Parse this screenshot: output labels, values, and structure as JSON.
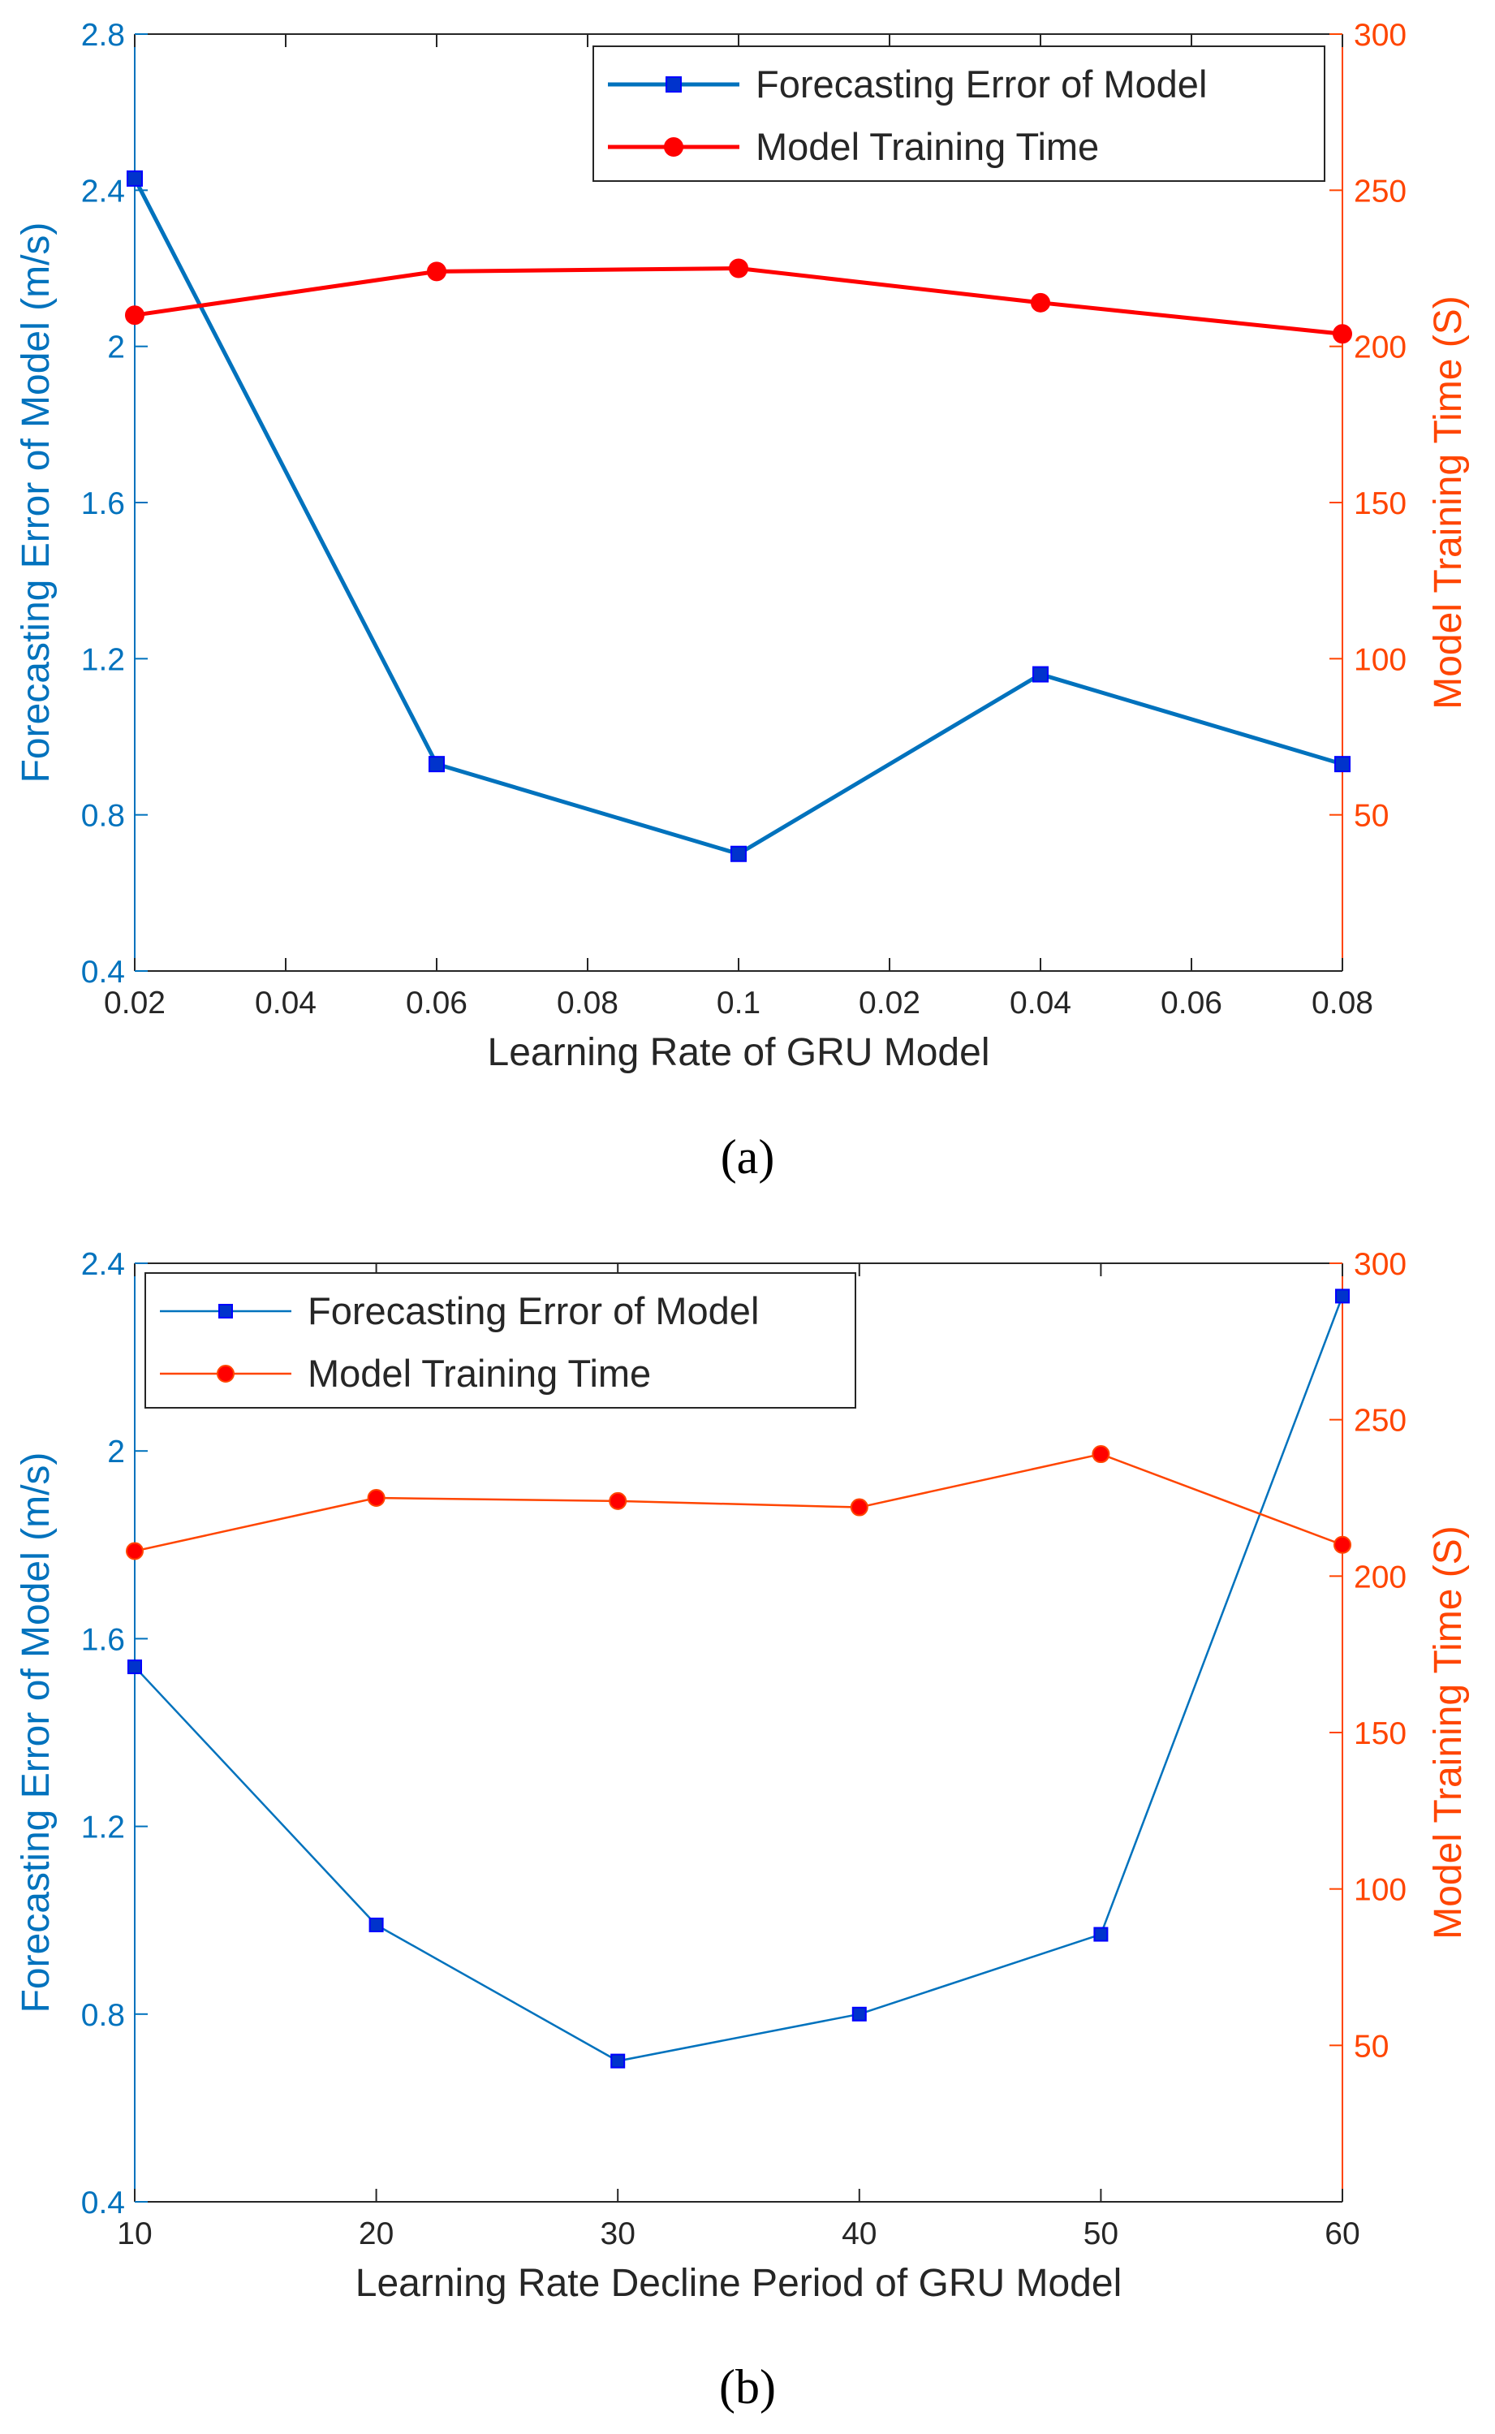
{
  "chart_data": [
    {
      "type": "line",
      "panel_label": "(a)",
      "xlabel": "Learning Rate of GRU Model",
      "x_tick_labels": [
        "0.02",
        "0.04",
        "0.06",
        "0.08",
        "0.1",
        "0.02",
        "0.04",
        "0.06",
        "0.08"
      ],
      "ylabel_left": "Forecasting Error of Model (m/s)",
      "ylabel_right": "Model Training Time (S)",
      "ylim_left": [
        0.4,
        2.8
      ],
      "yticks_left": [
        "0.4",
        "0.8",
        "1.2",
        "1.6",
        "2",
        "2.4",
        "2.8"
      ],
      "ylim_right": [
        0,
        300
      ],
      "yticks_right": [
        "50",
        "100",
        "150",
        "200",
        "250",
        "300"
      ],
      "legend_position": "top-right",
      "colors": {
        "left_axis": "#0072BD",
        "right_axis": "#FF4500"
      },
      "series": [
        {
          "name": "Forecasting Error of Model",
          "axis": "left",
          "color": "#0072BD",
          "marker": "square",
          "x": [
            0,
            2,
            4,
            6,
            8
          ],
          "values": [
            2.43,
            0.93,
            0.7,
            1.16,
            0.93
          ]
        },
        {
          "name": "Model Training Time",
          "axis": "right",
          "color": "#FF0000",
          "marker": "circle",
          "x": [
            0,
            2,
            4,
            6,
            8
          ],
          "values": [
            210,
            224,
            225,
            214,
            204
          ]
        }
      ]
    },
    {
      "type": "line",
      "panel_label": "(b)",
      "xlabel": "Learning Rate Decline Period of GRU Model",
      "x_tick_labels": [
        "10",
        "20",
        "30",
        "40",
        "50",
        "60"
      ],
      "ylabel_left": "Forecasting Error of Model (m/s)",
      "ylabel_right": "Model Training Time (S)",
      "ylim_left": [
        0.4,
        2.4
      ],
      "yticks_left": [
        "0.4",
        "0.8",
        "1.2",
        "1.6",
        "2",
        "2.4"
      ],
      "ylim_right": [
        0,
        300
      ],
      "yticks_right": [
        "50",
        "100",
        "150",
        "200",
        "250",
        "300"
      ],
      "legend_position": "top-left",
      "colors": {
        "left_axis": "#0072BD",
        "right_axis": "#FF4500"
      },
      "series": [
        {
          "name": "Forecasting Error of Model",
          "axis": "left",
          "color": "#0072BD",
          "marker": "square",
          "x": [
            10,
            20,
            30,
            40,
            50,
            60
          ],
          "values": [
            1.54,
            0.99,
            0.7,
            0.8,
            0.97,
            2.33
          ]
        },
        {
          "name": "Model Training Time",
          "axis": "right",
          "color": "#FF4500",
          "marker": "circle",
          "x": [
            10,
            20,
            30,
            40,
            50,
            60
          ],
          "values": [
            208,
            225,
            224,
            222,
            239,
            210
          ]
        }
      ]
    }
  ]
}
